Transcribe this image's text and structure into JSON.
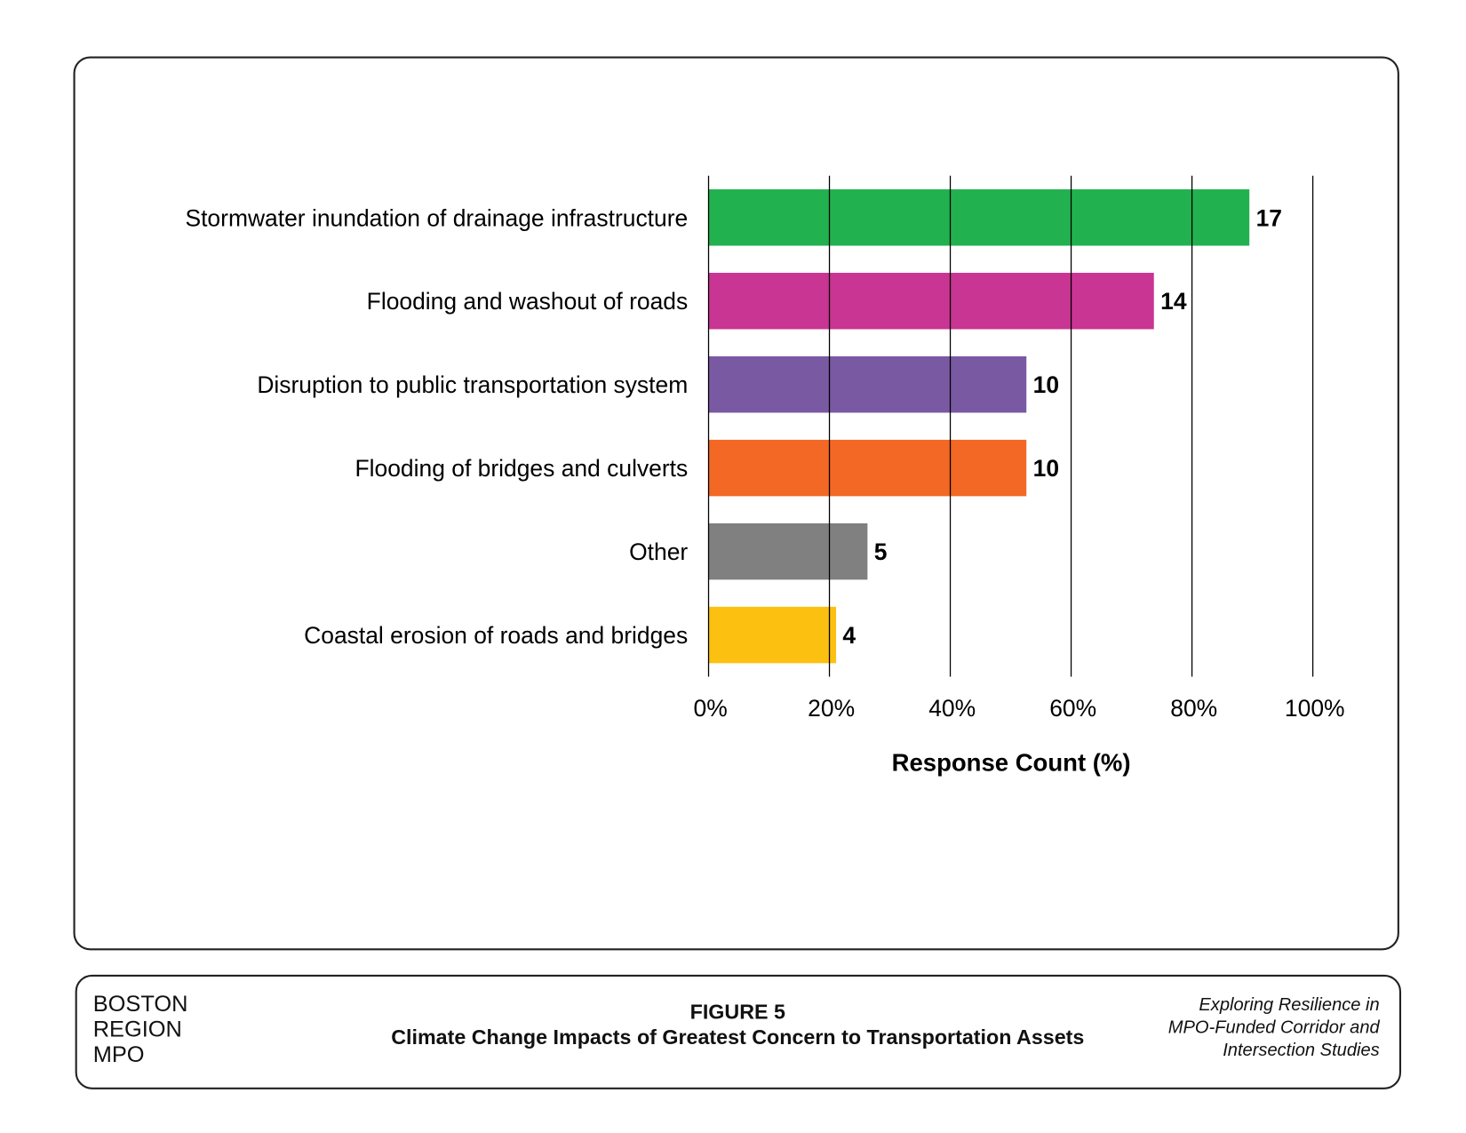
{
  "chart_data": {
    "type": "bar",
    "orientation": "horizontal",
    "categories": [
      "Stormwater inundation of drainage infrastructure",
      "Flooding and washout of roads",
      "Disruption to public transportation system",
      "Flooding of bridges and culverts",
      "Other",
      "Coastal erosion of roads and bridges"
    ],
    "values": [
      89.5,
      73.7,
      52.6,
      52.6,
      26.3,
      21.1
    ],
    "data_labels": [
      "17",
      "14",
      "10",
      "10",
      "5",
      "4"
    ],
    "colors": [
      "#21b24f",
      "#c93593",
      "#7a59a3",
      "#f26824",
      "#808080",
      "#fcc010"
    ],
    "xlabel": "Response Count (%)",
    "ylabel": "",
    "xlim": [
      0,
      100
    ],
    "xticks": [
      "0%",
      "20%",
      "40%",
      "60%",
      "80%",
      "100%"
    ],
    "grid": "vertical"
  },
  "footer": {
    "org_lines": [
      "BOSTON",
      "REGION",
      "MPO"
    ],
    "figure_number": "FIGURE 5",
    "figure_title": "Climate Change Impacts of Greatest Concern to Transportation Assets",
    "report_lines": [
      "Exploring Resilience in",
      "MPO-Funded Corridor and",
      "Intersection Studies"
    ]
  }
}
